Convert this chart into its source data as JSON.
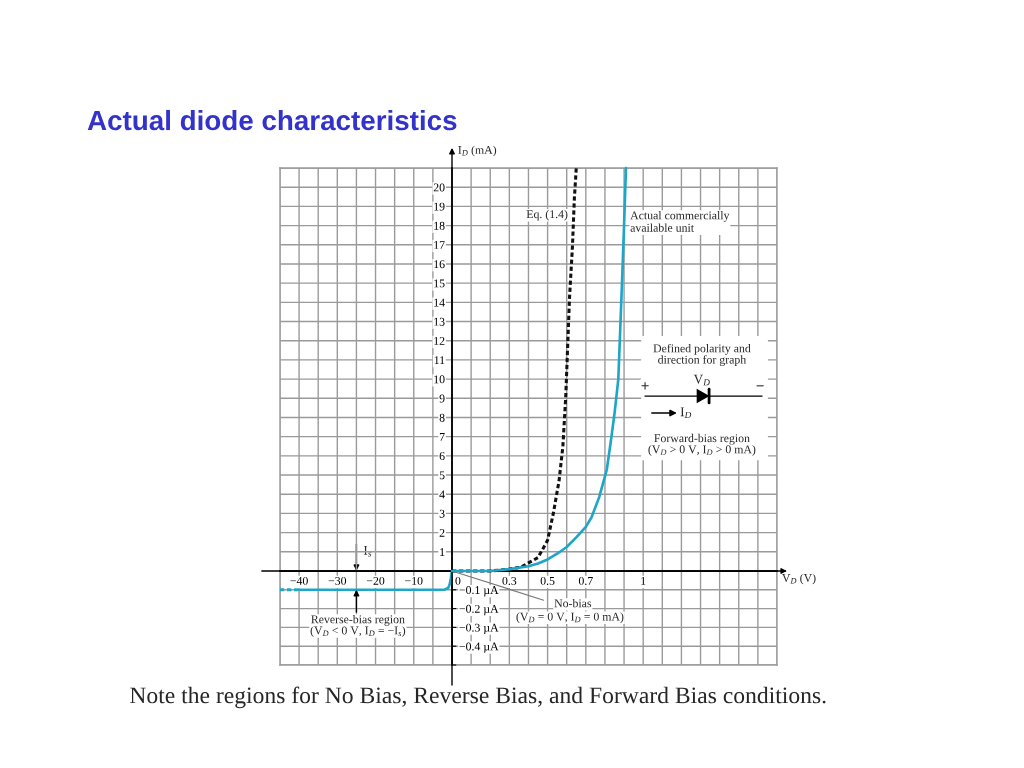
{
  "chart_data": [
    {
      "type": "line",
      "title": "Actual diode characteristics",
      "xlim": [
        -45,
        0
      ],
      "xticks": [
        {
          "value": -45,
          "label": null
        },
        {
          "value": -40,
          "label": "−40"
        },
        {
          "value": -35,
          "label": null
        },
        {
          "value": -30,
          "label": "−30"
        },
        {
          "value": -25,
          "label": null
        },
        {
          "value": -20,
          "label": "−20"
        },
        {
          "value": -15,
          "label": null
        },
        {
          "value": -10,
          "label": "−10"
        },
        {
          "value": -5,
          "label": null
        },
        {
          "value": 0,
          "label": null
        }
      ],
      "ylim": [
        0,
        21
      ],
      "yticks": [
        0,
        1,
        2,
        3,
        4,
        5,
        6,
        7,
        8,
        9,
        10,
        11,
        12,
        13,
        14,
        15,
        16,
        17,
        18,
        19,
        20,
        21
      ],
      "tick_labels": "x",
      "grid": true
    },
    {
      "type": "line",
      "xlabel": "V$_{D}$ (V)",
      "ylabel": "I$_{D}$ (mA)",
      "series": [
        {
          "name": "Eq. (1.4)",
          "color": "#111111",
          "line_style": "dashed",
          "x": [
            0,
            0.1,
            0.2,
            0.3,
            0.36,
            0.45,
            0.5,
            0.53,
            0.56,
            0.58,
            0.595,
            0.605,
            0.615,
            0.63,
            0.64,
            0.65
          ],
          "values": [
            0,
            0,
            0,
            0.1,
            0.2,
            0.7,
            1.6,
            3,
            4.7,
            6.5,
            9.1,
            11.7,
            14.3,
            16.9,
            19.4,
            21
          ]
        },
        {
          "name": "Actual commercially\navailable unit",
          "color": "#1ea6c8",
          "line_style": "solid",
          "x": [
            0,
            0.1,
            0.2,
            0.3,
            0.4,
            0.45,
            0.5,
            0.55,
            0.6,
            0.65,
            0.7,
            0.73,
            0.77,
            0.81,
            0.83,
            0.85,
            0.87,
            0.88,
            0.89,
            0.9,
            0.91
          ],
          "values": [
            0,
            0,
            0,
            0.1,
            0.25,
            0.39,
            0.6,
            0.9,
            1.25,
            1.75,
            2.3,
            2.8,
            3.85,
            5.3,
            6.7,
            8.2,
            10,
            12.6,
            15.2,
            18,
            21
          ]
        }
      ],
      "xlim": [
        0,
        1.7
      ],
      "xticks": [
        0,
        {
          "value": 0.1,
          "label": null
        },
        {
          "value": 0.2,
          "label": null
        },
        0.3,
        {
          "value": 0.4,
          "label": null
        },
        0.5,
        {
          "value": 0.6,
          "label": null
        },
        0.7,
        {
          "value": 0.8,
          "label": null
        },
        {
          "value": 0.9,
          "label": null
        },
        1,
        {
          "value": 1.1,
          "label": null
        },
        {
          "value": 1.2,
          "label": null
        },
        {
          "value": 1.3,
          "label": null
        },
        {
          "value": 1.4,
          "label": null
        },
        {
          "value": 1.5,
          "label": null
        },
        {
          "value": 1.6,
          "label": null
        },
        {
          "value": 1.7,
          "label": null
        }
      ],
      "ylim": [
        0,
        21
      ],
      "yticks": [
        {
          "value": 0,
          "label": null
        },
        1,
        2,
        3,
        4,
        5,
        6,
        7,
        8,
        9,
        10,
        11,
        12,
        13,
        14,
        15,
        16,
        17,
        18,
        19,
        20,
        {
          "value": 21,
          "label": null
        }
      ],
      "grid": true,
      "annotations": [
        "Defined polarity and\ndirection for graph",
        "+",
        "V$_{D}$",
        "−",
        "I$_{D}$",
        "Forward-bias region\n(V$_{D}$ > 0 V, I$_{D}$ > 0 mA)",
        {
          "text": "No-bias",
          "x": 0,
          "y": 0
        },
        "(V$_{D}$ = 0 V, I$_{D}$ = 0 mA)"
      ]
    },
    {
      "type": "line",
      "series": [
        {
          "color": "#1ea6c8",
          "line_style": "solid",
          "x": [
            -40,
            -2,
            -1,
            -0.6,
            -0.3,
            0
          ],
          "values": [
            -0.1,
            -0.1,
            -0.09,
            -0.07,
            -0.04,
            0
          ]
        },
        {
          "color": "#1ea6c8",
          "line_style": "dashed",
          "x": [
            -45,
            -40
          ],
          "values": [
            -0.1,
            -0.1
          ]
        }
      ],
      "xlim": [
        -45,
        0
      ],
      "xticks": [
        -45,
        -40,
        -35,
        -30,
        -25,
        -20,
        -15,
        -10,
        -5,
        0
      ],
      "ylim": [
        -0.5,
        0
      ],
      "yticks": [
        {
          "value": -0.5,
          "label": null
        },
        {
          "value": -0.4,
          "label": "−0.4 µA"
        },
        {
          "value": -0.3,
          "label": "−0.3 µA"
        },
        {
          "value": -0.2,
          "label": "−0.2 µA"
        },
        {
          "value": -0.1,
          "label": "−0.1 µA"
        },
        {
          "value": 0,
          "label": null
        }
      ],
      "tick_labels": "y",
      "grid": true,
      "annotations": [
        {
          "text": "I$_{s}$",
          "x": -25,
          "y": -0.1
        },
        "Reverse-bias region\n(V$_{D}$ < 0 V, I$_{D}$ = −I$_{s}$)"
      ]
    },
    {
      "type": "line",
      "xlim": [
        0,
        1.7
      ],
      "xticks": [
        0,
        0.1,
        0.2,
        0.3,
        0.4,
        0.5,
        0.6,
        0.7,
        0.8,
        0.9,
        1,
        1.1,
        1.2,
        1.3,
        1.4,
        1.5,
        1.6,
        1.7
      ],
      "ylim": [
        -0.5,
        0
      ],
      "yticks": [
        -0.5,
        -0.4,
        -0.3,
        -0.2,
        -0.1,
        0
      ],
      "tick_labels": false,
      "grid": true,
      "annotations": [
        "Note the regions for No Bias, Reverse Bias, and Forward Bias conditions."
      ]
    }
  ]
}
